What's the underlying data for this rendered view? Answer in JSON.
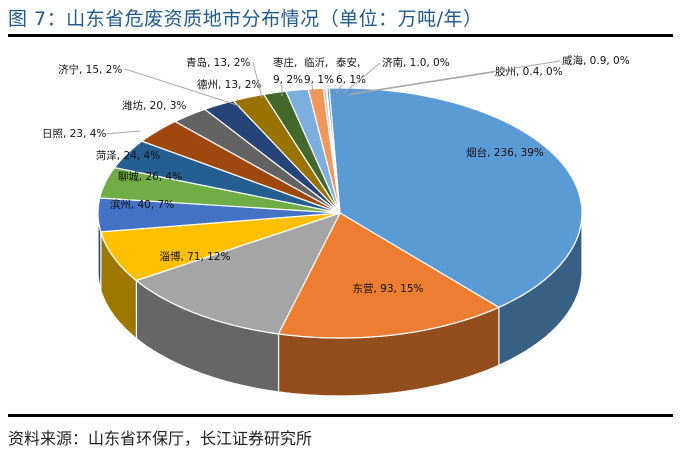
{
  "header": {
    "title": "图 7：山东省危废资质地市分布情况（单位：万吨/年）"
  },
  "footer": {
    "source": "资料来源：山东省环保厅，长江证券研究所"
  },
  "chart_data": {
    "type": "pie",
    "style": "3d",
    "title": "山东省危废资质地市分布情况",
    "unit": "万吨/年",
    "label_format": "城市, 数值, 百分比",
    "categories": [
      "烟台",
      "东营",
      "淄博",
      "滨州",
      "聊城",
      "菏泽",
      "日照",
      "潍坊",
      "济宁",
      "青岛",
      "德州",
      "枣庄",
      "临沂",
      "泰安",
      "济南",
      "胶州",
      "威海"
    ],
    "values": [
      236,
      93,
      71,
      40,
      26,
      24,
      23,
      20,
      15,
      13,
      13,
      9,
      9,
      6,
      1.0,
      0.4,
      0.9
    ],
    "percent_labels": [
      "39%",
      "15%",
      "12%",
      "7%",
      "4%",
      "4%",
      "4%",
      "3%",
      "2%",
      "2%",
      "2%",
      "2%",
      "1%",
      "1%",
      "0%",
      "0%",
      "0%"
    ],
    "labels": [
      "烟台, 236, 39%",
      "东营, 93, 15%",
      "淄博, 71, 12%",
      "滨州, 40, 7%",
      "聊城, 26, 4%",
      "菏泽, 24, 4%",
      "日照, 23, 4%",
      "潍坊, 20, 3%",
      "济宁, 15, 2%",
      "青岛, 13, 2%",
      "德州, 13, 2%",
      "枣庄, 9, 2%",
      "临沂, 9, 1%",
      "泰安, 6, 1%",
      "济南, 1.0, 0%",
      "胶州, 0.4, 0%",
      "威海, 0.9, 0%"
    ],
    "colors": [
      "#5b9bd5",
      "#ed7d31",
      "#a5a5a5",
      "#ffc000",
      "#4472c4",
      "#70ad47",
      "#255e91",
      "#9e480e",
      "#636363",
      "#997300",
      "#264478",
      "#43682b",
      "#7cafdd",
      "#f1975a",
      "#b7b7b7",
      "#ffcd33",
      "#698ed0"
    ],
    "legend": "none"
  }
}
